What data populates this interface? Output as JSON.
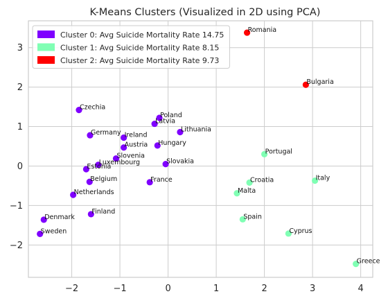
{
  "chart_data": {
    "type": "scatter",
    "title": "K-Means Clusters (Visualized in 2D using PCA)",
    "xlabel": "",
    "ylabel": "",
    "xlim": [
      -2.9,
      4.25
    ],
    "ylim": [
      -2.82,
      3.68
    ],
    "xticks": [
      -2,
      -1,
      0,
      1,
      2,
      3,
      4
    ],
    "yticks": [
      -2,
      -1,
      0,
      1,
      2,
      3
    ],
    "grid": true,
    "legend_position": "top-left",
    "series": [
      {
        "name": "Cluster 0: Avg Suicide Mortality Rate 14.75",
        "color": "#7f00ff",
        "points": [
          {
            "label": "Czechia",
            "x": -1.85,
            "y": 1.42
          },
          {
            "label": "Poland",
            "x": -0.18,
            "y": 1.22
          },
          {
            "label": "Latvia",
            "x": -0.28,
            "y": 1.07
          },
          {
            "label": "Lithuania",
            "x": 0.25,
            "y": 0.86
          },
          {
            "label": "Germany",
            "x": -1.62,
            "y": 0.78
          },
          {
            "label": "Ireland",
            "x": -0.92,
            "y": 0.72
          },
          {
            "label": "Austria",
            "x": -0.92,
            "y": 0.47
          },
          {
            "label": "Hungary",
            "x": -0.22,
            "y": 0.52
          },
          {
            "label": "Slovenia",
            "x": -1.08,
            "y": 0.19
          },
          {
            "label": "Luxembourg",
            "x": -1.45,
            "y": 0.03
          },
          {
            "label": "Estonia",
            "x": -1.7,
            "y": -0.08
          },
          {
            "label": "Slovakia",
            "x": -0.05,
            "y": 0.05
          },
          {
            "label": "Belgium",
            "x": -1.63,
            "y": -0.4
          },
          {
            "label": "France",
            "x": -0.38,
            "y": -0.41
          },
          {
            "label": "Netherlands",
            "x": -1.97,
            "y": -0.73
          },
          {
            "label": "Finland",
            "x": -1.6,
            "y": -1.22
          },
          {
            "label": "Denmark",
            "x": -2.58,
            "y": -1.36
          },
          {
            "label": "Sweden",
            "x": -2.66,
            "y": -1.72
          }
        ]
      },
      {
        "name": "Cluster 1: Avg Suicide Mortality Rate 8.15",
        "color": "#80ffb4",
        "points": [
          {
            "label": "Portugal",
            "x": 2.0,
            "y": 0.3
          },
          {
            "label": "Italy",
            "x": 3.05,
            "y": -0.37
          },
          {
            "label": "Croatia",
            "x": 1.69,
            "y": -0.42
          },
          {
            "label": "Malta",
            "x": 1.43,
            "y": -0.69
          },
          {
            "label": "Spain",
            "x": 1.55,
            "y": -1.35
          },
          {
            "label": "Cyprus",
            "x": 2.5,
            "y": -1.71
          },
          {
            "label": "Greece",
            "x": 3.9,
            "y": -2.48
          }
        ]
      },
      {
        "name": "Cluster 2: Avg Suicide Mortality Rate 9.73",
        "color": "#ff0000",
        "points": [
          {
            "label": "Romania",
            "x": 1.64,
            "y": 3.38
          },
          {
            "label": "Bulgaria",
            "x": 2.86,
            "y": 2.06
          }
        ]
      }
    ]
  },
  "colors": {
    "grid": "#cccccc",
    "axes_edge": "#cccccc",
    "background": "#ffffff"
  }
}
